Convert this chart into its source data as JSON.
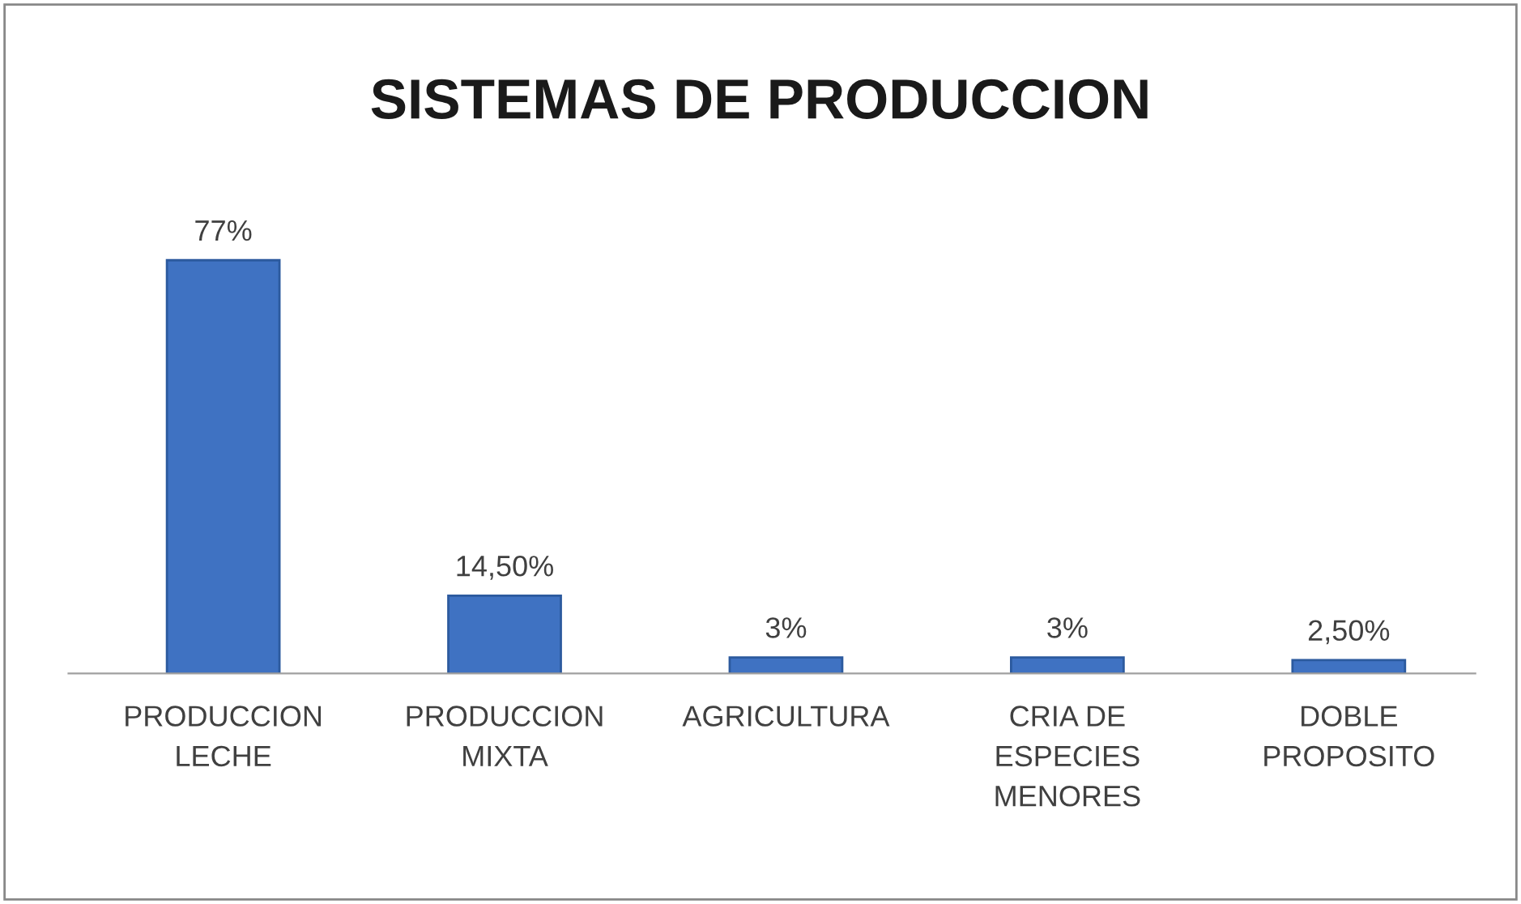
{
  "chart_data": {
    "type": "bar",
    "title": "SISTEMAS DE PRODUCCION",
    "categories": [
      "PRODUCCION\nLECHE",
      "PRODUCCION\nMIXTA",
      "AGRICULTURA",
      "CRIA DE\nESPECIES\nMENORES",
      "DOBLE\nPROPOSITO"
    ],
    "values": [
      77,
      14.5,
      3,
      3,
      2.5
    ],
    "value_labels": [
      "77%",
      "14,50%",
      "3%",
      "3%",
      "2,50%"
    ],
    "color": "#3f72c2",
    "grid": false,
    "legend": false
  }
}
